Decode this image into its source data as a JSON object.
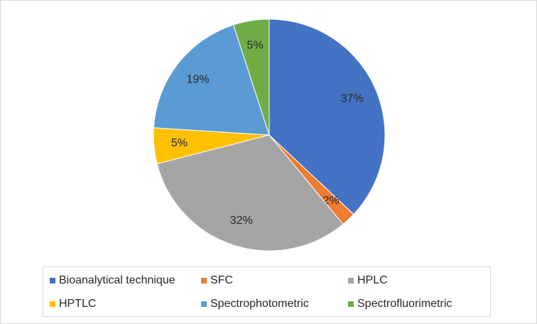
{
  "chart_data": {
    "type": "pie",
    "categories": [
      "Bioanalytical technique",
      "SFC",
      "HPLC",
      "HPTLC",
      "Spectrophotometric",
      "Spectrofluorimetric"
    ],
    "values": [
      37,
      2,
      32,
      5,
      19,
      5
    ],
    "value_labels": [
      "37%",
      "2%",
      "32%",
      "5%",
      "19%",
      "5%"
    ],
    "colors": [
      "#4472c4",
      "#ed7d31",
      "#a5a5a5",
      "#ffc000",
      "#5b9bd5",
      "#70ad47"
    ],
    "legend": "bottom"
  }
}
